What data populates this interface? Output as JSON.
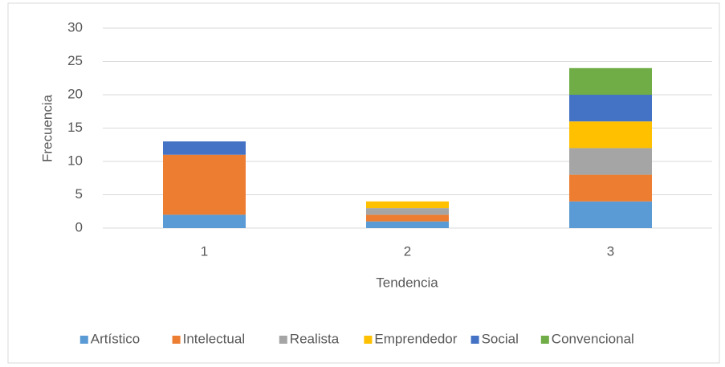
{
  "chart_data": {
    "type": "bar",
    "stacked": true,
    "x_label": "Tendencia",
    "y_label": "Frecuencia",
    "categories": [
      "1",
      "2",
      "3"
    ],
    "series": [
      {
        "name": "Artístico",
        "color": "#5b9bd5",
        "values": [
          2,
          1,
          4
        ]
      },
      {
        "name": "Intelectual",
        "color": "#ed7d31",
        "values": [
          9,
          1,
          4
        ]
      },
      {
        "name": "Realista",
        "color": "#a5a5a5",
        "values": [
          0,
          1,
          4
        ]
      },
      {
        "name": "Emprendedor",
        "color": "#ffc000",
        "values": [
          0,
          1,
          4
        ]
      },
      {
        "name": "Social",
        "color": "#4472c4",
        "values": [
          2,
          0,
          4
        ]
      },
      {
        "name": "Convencional",
        "color": "#70ad47",
        "values": [
          0,
          0,
          4
        ]
      }
    ],
    "ylim": [
      0,
      30
    ],
    "yticks": [
      0,
      5,
      10,
      15,
      20,
      25,
      30
    ],
    "grid": true,
    "legend": "bottom"
  }
}
